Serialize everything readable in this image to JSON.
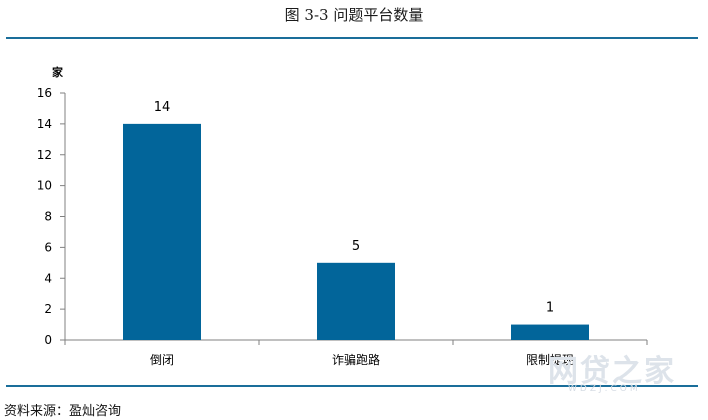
{
  "page": {
    "title": "图 3-3 问题平台数量",
    "source": "资料来源：盈灿咨询",
    "watermark": "网贷之家",
    "watermark_url": "WDZJ.COM"
  },
  "chart_data": {
    "type": "bar",
    "title": "图 3-3 问题平台数量",
    "ylabel": "家",
    "xlabel": "",
    "categories": [
      "倒闭",
      "诈骗跑路",
      "限制提现"
    ],
    "values": [
      14,
      5,
      1
    ],
    "ylim": [
      0,
      16
    ],
    "yticks": [
      0,
      2,
      4,
      6,
      8,
      10,
      12,
      14,
      16
    ],
    "data_labels": true,
    "grid": false,
    "legend": "none",
    "bar_color": "#02659a",
    "rule_color": "#1a6e9a"
  }
}
